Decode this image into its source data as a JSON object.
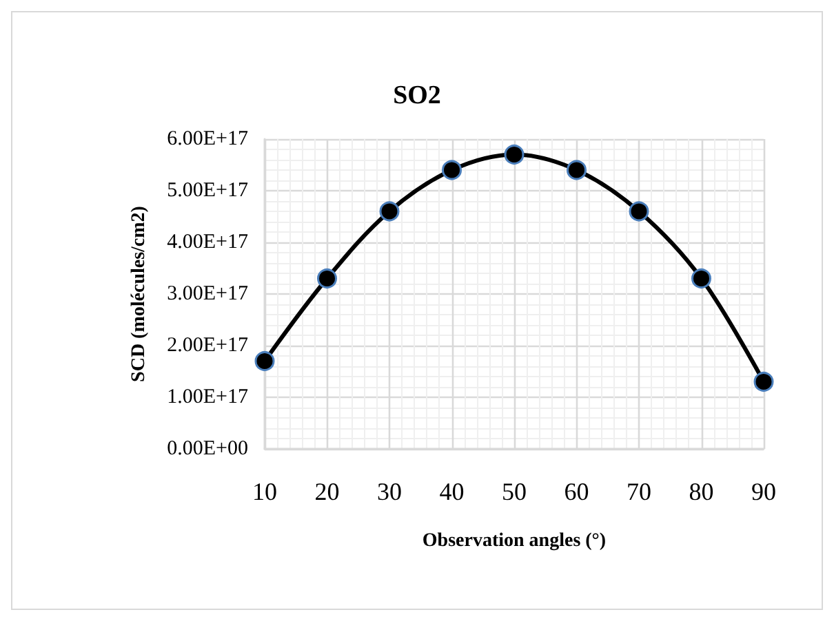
{
  "chart_data": {
    "type": "line",
    "title": "SO2",
    "xlabel": "Observation angles (°)",
    "ylabel": "SCD (molécules/cm2)",
    "x": [
      10,
      20,
      30,
      40,
      50,
      60,
      70,
      80,
      90
    ],
    "series": [
      {
        "color": "#000000",
        "values": [
          1.7e+17,
          3.3e+17,
          4.6e+17,
          5.4e+17,
          5.7e+17,
          5.4e+17,
          4.6e+17,
          3.3e+17,
          1.3e+17
        ]
      }
    ],
    "xlim": [
      10,
      90
    ],
    "xticks": [
      10,
      20,
      30,
      40,
      50,
      60,
      70,
      80,
      90
    ],
    "ylim": [
      0,
      6e+17
    ],
    "yticks": [
      {
        "value": 0,
        "label": "0.00E+00"
      },
      {
        "value": 1e+17,
        "label": "1.00E+17"
      },
      {
        "value": 2e+17,
        "label": "2.00E+17"
      },
      {
        "value": 3e+17,
        "label": "3.00E+17"
      },
      {
        "value": 4e+17,
        "label": "4.00E+17"
      },
      {
        "value": 5e+17,
        "label": "5.00E+17"
      },
      {
        "value": 6e+17,
        "label": "6.00E+17"
      }
    ],
    "grid": true,
    "marker": "circle",
    "line_style": "solid"
  }
}
